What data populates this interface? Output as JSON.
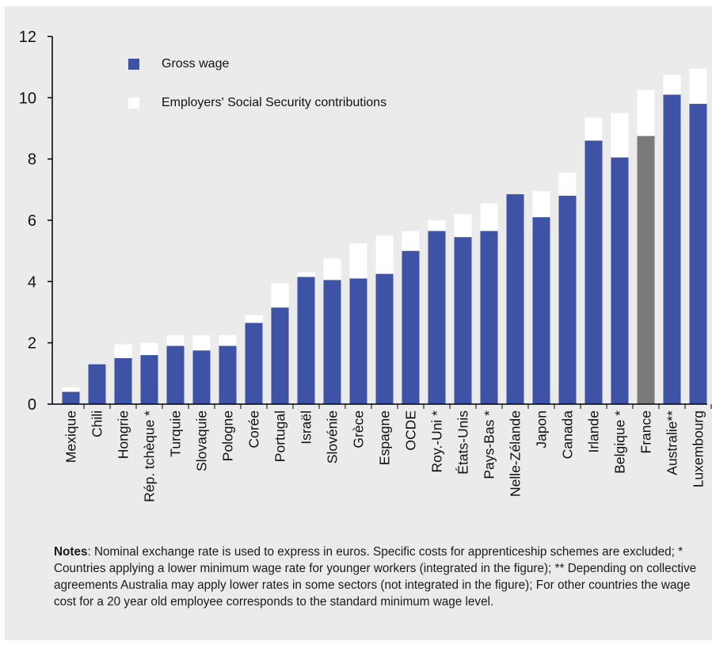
{
  "chart_data": {
    "type": "bar",
    "stacked": true,
    "ylim": [
      0,
      12
    ],
    "yticks": [
      0,
      2,
      4,
      6,
      8,
      10,
      12
    ],
    "grid": false,
    "legend_position": "top-left",
    "categories": [
      "Mexique",
      "Chili",
      "Hongrie",
      "Rép. tchèque *",
      "Turquie",
      "Slovaquie",
      "Pologne",
      "Corée",
      "Portugal",
      "Israël",
      "Slovénie",
      "Grèce",
      "Espagne",
      "OCDE",
      "Roy.-Uni *",
      "États-Unis",
      "Pays-Bas *",
      "Nelle-Zélande",
      "Japon",
      "Canada",
      "Irlande",
      "Belgique *",
      "France",
      "Australie**",
      "Luxembourg"
    ],
    "series": [
      {
        "name": "Gross wage",
        "color": "#3e53a6",
        "values": [
          0.4,
          1.3,
          1.5,
          1.6,
          1.9,
          1.75,
          1.9,
          2.65,
          3.15,
          4.15,
          4.05,
          4.1,
          4.25,
          5.0,
          5.65,
          5.45,
          5.65,
          6.85,
          6.1,
          6.8,
          8.6,
          8.05,
          8.75,
          10.1,
          9.8
        ]
      },
      {
        "name": "Employers' Social Security contributions",
        "color": "#ffffff",
        "values": [
          0.15,
          0.0,
          0.45,
          0.4,
          0.35,
          0.5,
          0.35,
          0.25,
          0.8,
          0.15,
          0.7,
          1.15,
          1.25,
          0.65,
          0.35,
          0.75,
          0.9,
          0.0,
          0.85,
          0.75,
          0.75,
          1.45,
          1.5,
          0.65,
          1.15
        ]
      }
    ],
    "highlight": {
      "category": "France",
      "color": "#7a7a7a"
    }
  },
  "notes": {
    "label": "Notes",
    "text": ": Nominal exchange rate is used to express in euros. Specific costs for apprenticeship schemes are excluded; * Countries applying a lower minimum wage rate for younger workers (integrated in the figure); ** Depending on collective agreements Australia may apply lower rates in some sectors (not integrated in the figure); For other countries the wage cost for a 20 year old employee corresponds to the standard minimum wage level."
  }
}
